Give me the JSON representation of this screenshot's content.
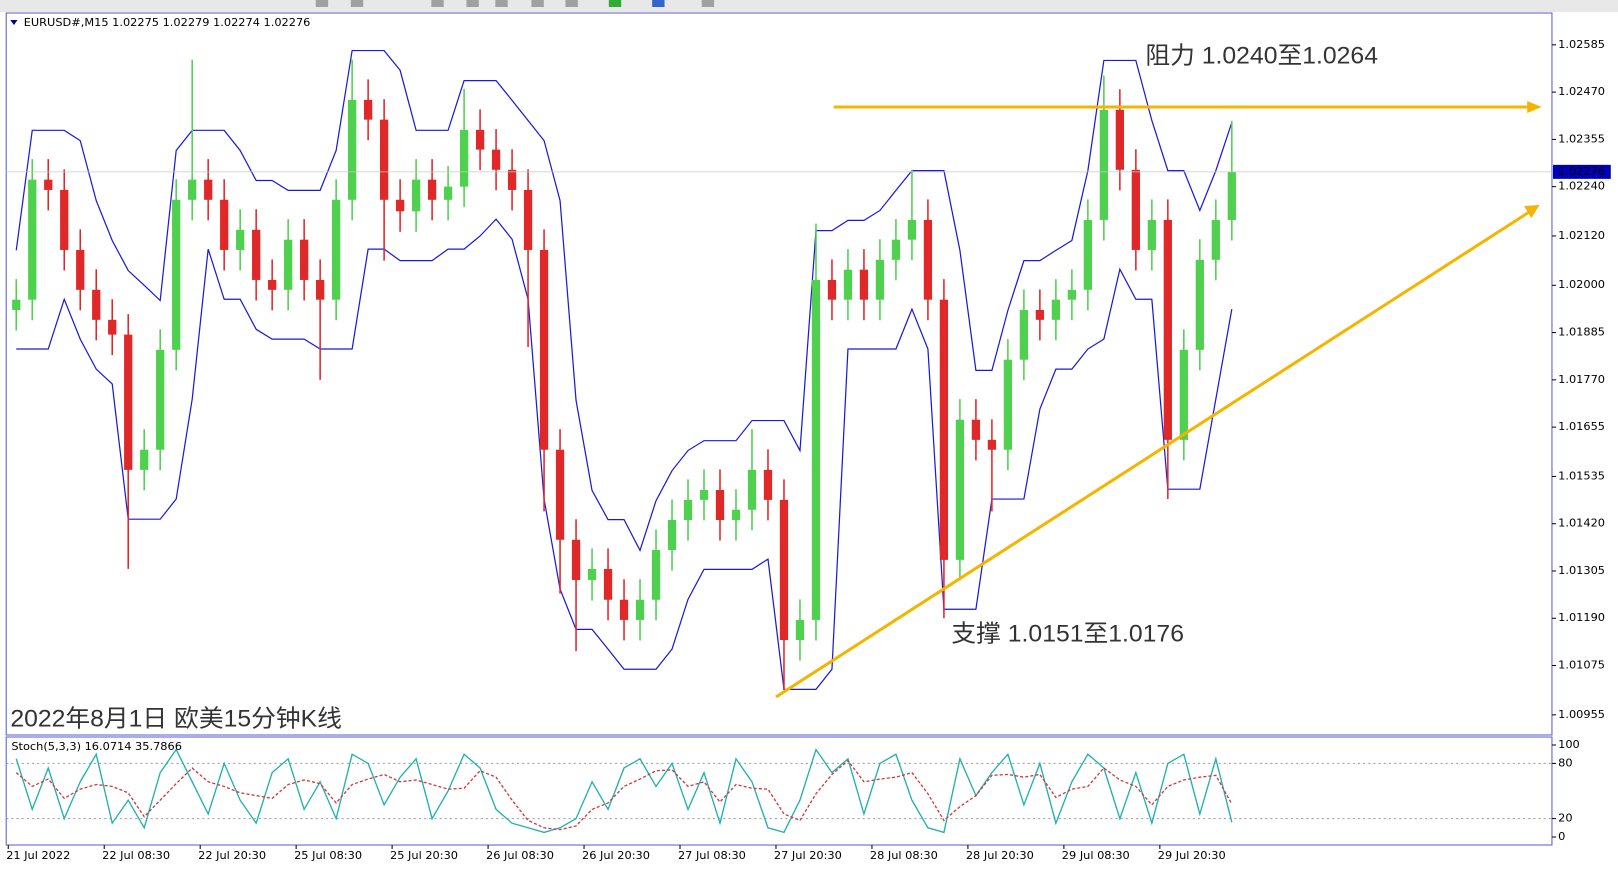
{
  "chart_data": [
    {
      "type": "candlestick",
      "title": "EURUSD#,M15  1.02275 1.02279 1.02274 1.02276",
      "annotations": [
        "阻力 1.0240至1.0264",
        "支撑 1.0151至1.0176",
        "2022年8月1日 欧美15分钟K线"
      ],
      "categories": [
        "21 Jul 2022",
        null,
        null,
        null,
        null,
        null,
        "22 Jul 08:30",
        null,
        null,
        null,
        null,
        null,
        "22 Jul 20:30",
        null,
        null,
        null,
        null,
        null,
        "25 Jul 08:30",
        null,
        null,
        null,
        null,
        null,
        "25 Jul 20:30",
        null,
        null,
        null,
        null,
        null,
        "26 Jul 08:30",
        null,
        null,
        null,
        null,
        null,
        "26 Jul 20:30",
        null,
        null,
        null,
        null,
        null,
        "27 Jul 08:30",
        null,
        null,
        null,
        null,
        null,
        "27 Jul 20:30",
        null,
        null,
        null,
        null,
        null,
        "28 Jul 08:30",
        null,
        null,
        null,
        null,
        null,
        "28 Jul 20:30",
        null,
        null,
        null,
        null,
        null,
        "29 Jul 08:30",
        null,
        null,
        null,
        null,
        null,
        "29 Jul 20:30",
        null,
        null,
        null,
        null
      ],
      "open": [
        1.0194,
        1.01965,
        1.02257,
        1.02232,
        1.02086,
        1.01989,
        1.01916,
        1.0188,
        1.01551,
        1.016,
        1.01843,
        1.02208,
        1.02257,
        1.02208,
        1.02086,
        1.02135,
        1.02013,
        1.01989,
        1.02111,
        1.02013,
        1.01965,
        1.02208,
        1.02451,
        1.02403,
        1.02208,
        1.0218,
        1.02257,
        1.02208,
        1.0224,
        1.02378,
        1.0233,
        1.02281,
        1.02232,
        1.02086,
        1.016,
        1.01381,
        1.01283,
        1.0131,
        1.01235,
        1.01186,
        1.01235,
        1.01356,
        1.01429,
        1.01478,
        1.01502,
        1.01429,
        1.01454,
        1.01551,
        1.01478,
        1.01137,
        1.01186,
        1.02013,
        1.01965,
        1.02038,
        1.01965,
        1.02062,
        1.02111,
        1.02159,
        1.01965,
        1.01332,
        1.01673,
        1.01624,
        1.016,
        1.01819,
        1.0194,
        1.01916,
        1.01965,
        1.01989,
        1.02159,
        1.02427,
        1.02281,
        1.02086,
        1.02159,
        1.01624,
        1.01843,
        1.02062,
        1.02159
      ],
      "high": [
        1.02015,
        1.02307,
        1.02307,
        1.02282,
        1.02136,
        1.02039,
        1.01966,
        1.0193,
        1.0165,
        1.01893,
        1.02258,
        1.02549,
        1.02307,
        1.02258,
        1.02185,
        1.02185,
        1.02063,
        1.02161,
        1.02161,
        1.02063,
        1.02258,
        1.02549,
        1.02501,
        1.02453,
        1.02258,
        1.02307,
        1.02307,
        1.0229,
        1.02478,
        1.02428,
        1.0238,
        1.02331,
        1.02282,
        1.02136,
        1.0165,
        1.01431,
        1.0136,
        1.0136,
        1.01285,
        1.01285,
        1.01406,
        1.01479,
        1.01528,
        1.01552,
        1.01552,
        1.01504,
        1.0165,
        1.01601,
        1.01528,
        1.01236,
        1.0215,
        1.02063,
        1.02088,
        1.02088,
        1.02112,
        1.02161,
        1.02281,
        1.02209,
        1.02015,
        1.01723,
        1.01723,
        1.01674,
        1.01869,
        1.0199,
        1.0199,
        1.02015,
        1.02039,
        1.02209,
        1.0251,
        1.02477,
        1.02331,
        1.02209,
        1.02209,
        1.01893,
        1.02112,
        1.02209,
        1.024
      ],
      "low": [
        1.0189,
        1.01915,
        1.02182,
        1.02036,
        1.01939,
        1.01866,
        1.0183,
        1.0131,
        1.01501,
        1.0155,
        1.01793,
        1.02158,
        1.02158,
        1.02036,
        1.02036,
        1.01963,
        1.01939,
        1.01939,
        1.01963,
        1.0177,
        1.01915,
        1.02158,
        1.02353,
        1.0206,
        1.0213,
        1.0213,
        1.02158,
        1.02158,
        1.0219,
        1.0228,
        1.02231,
        1.02182,
        1.0185,
        1.0145,
        1.0125,
        1.0111,
        1.01233,
        1.01185,
        1.01136,
        1.01136,
        1.01185,
        1.01306,
        1.01379,
        1.01428,
        1.01379,
        1.01379,
        1.01404,
        1.01428,
        1.01016,
        1.01087,
        1.01136,
        1.01915,
        1.01915,
        1.01915,
        1.01915,
        1.02012,
        1.02061,
        1.01915,
        1.0119,
        1.01282,
        1.01574,
        1.0145,
        1.0155,
        1.01769,
        1.01866,
        1.01866,
        1.01915,
        1.01939,
        1.02109,
        1.02231,
        1.02036,
        1.02036,
        1.0148,
        1.01574,
        1.01793,
        1.02012,
        1.02109
      ],
      "close": [
        1.01965,
        1.02257,
        1.02232,
        1.02086,
        1.01989,
        1.01916,
        1.0188,
        1.01551,
        1.016,
        1.01843,
        1.02208,
        1.02257,
        1.02208,
        1.02086,
        1.02135,
        1.02013,
        1.01989,
        1.02111,
        1.02013,
        1.01965,
        1.02208,
        1.02451,
        1.02403,
        1.02208,
        1.0218,
        1.02257,
        1.02208,
        1.0224,
        1.02378,
        1.0233,
        1.02281,
        1.02232,
        1.02086,
        1.016,
        1.01381,
        1.01283,
        1.0131,
        1.01235,
        1.01186,
        1.01235,
        1.01356,
        1.01429,
        1.01478,
        1.01502,
        1.01429,
        1.01454,
        1.01551,
        1.01478,
        1.01137,
        1.01186,
        1.02013,
        1.01965,
        1.02038,
        1.01965,
        1.02062,
        1.02111,
        1.02159,
        1.01965,
        1.01332,
        1.01673,
        1.01624,
        1.016,
        1.01819,
        1.0194,
        1.01916,
        1.01965,
        1.01989,
        1.02159,
        1.02427,
        1.02281,
        1.02086,
        1.02159,
        1.01624,
        1.01843,
        1.02062,
        1.02159,
        1.02276
      ],
      "upper_band": [
        1.02085,
        1.02377,
        1.02377,
        1.02377,
        1.02352,
        1.02206,
        1.02109,
        1.02036,
        1.02,
        1.01963,
        1.02328,
        1.02377,
        1.02377,
        1.02377,
        1.02328,
        1.02255,
        1.02255,
        1.02231,
        1.02231,
        1.02231,
        1.02328,
        1.02571,
        1.02571,
        1.02571,
        1.02523,
        1.02377,
        1.02377,
        1.02377,
        1.02498,
        1.02498,
        1.02498,
        1.0245,
        1.02401,
        1.02352,
        1.02206,
        1.0172,
        1.01501,
        1.0143,
        1.0143,
        1.01355,
        1.01476,
        1.01549,
        1.01598,
        1.01622,
        1.01622,
        1.01622,
        1.01671,
        1.01671,
        1.01671,
        1.01598,
        1.02133,
        1.02133,
        1.02158,
        1.02158,
        1.02182,
        1.02231,
        1.02279,
        1.02279,
        1.02279,
        1.02085,
        1.01793,
        1.01793,
        1.01939,
        1.0206,
        1.0206,
        1.02085,
        1.02109,
        1.02279,
        1.02547,
        1.02547,
        1.02547,
        1.02401,
        1.02279,
        1.02279,
        1.02182,
        1.02279,
        1.02396
      ],
      "lower_band": [
        1.01845,
        1.01845,
        1.01845,
        1.01966,
        1.01869,
        1.01796,
        1.0176,
        1.01431,
        1.01431,
        1.01431,
        1.0148,
        1.01723,
        1.02088,
        1.01966,
        1.01966,
        1.01893,
        1.01869,
        1.01869,
        1.01869,
        1.01845,
        1.01845,
        1.01845,
        1.02088,
        1.02088,
        1.0206,
        1.0206,
        1.0206,
        1.02088,
        1.02088,
        1.0212,
        1.02161,
        1.02112,
        1.01966,
        1.0148,
        1.01261,
        1.01163,
        1.01163,
        1.01115,
        1.01066,
        1.01066,
        1.01066,
        1.01115,
        1.01236,
        1.01309,
        1.01309,
        1.01309,
        1.01309,
        1.01334,
        1.01017,
        1.01017,
        1.01017,
        1.01066,
        1.01845,
        1.01845,
        1.01845,
        1.01845,
        1.01942,
        1.01845,
        1.01212,
        1.01212,
        1.01212,
        1.0148,
        1.0148,
        1.0148,
        1.01699,
        1.01796,
        1.01796,
        1.01845,
        1.01869,
        1.02039,
        1.01966,
        1.01966,
        1.01504,
        1.01504,
        1.01504,
        1.01723,
        1.01942
      ],
      "up_color": "#4fd04f",
      "down_color": "#e02828",
      "band_color": "#1a1ad8",
      "last_price": 1.02276,
      "ylim": [
        1.00906,
        1.0266
      ],
      "yticks": [
        1.02585,
        {
          "value": 1.0247,
          "label": "1.02470"
        },
        1.02355,
        {
          "value": 1.0224,
          "label": "1.02240"
        },
        {
          "value": 1.0212,
          "label": "1.02120"
        },
        {
          "value": 1.02,
          "label": "1.02000"
        },
        1.01885,
        {
          "value": 1.0177,
          "label": "1.01770"
        },
        1.01655,
        1.01535,
        {
          "value": 1.0142,
          "label": "1.01420"
        },
        1.01305,
        {
          "value": 1.0119,
          "label": "1.01190"
        },
        1.01075,
        1.00955
      ]
    },
    {
      "type": "line",
      "title": "Stoch(5,3,3) 16.0714 35.7866",
      "series": [
        {
          "color": "#1fb0b0",
          "values": [
            85,
            30,
            75,
            20,
            60,
            90,
            15,
            40,
            10,
            70,
            95,
            60,
            25,
            80,
            40,
            15,
            70,
            85,
            30,
            60,
            20,
            90,
            80,
            35,
            65,
            85,
            20,
            50,
            90,
            75,
            30,
            15,
            10,
            5,
            10,
            20,
            60,
            30,
            75,
            85,
            55,
            80,
            30,
            70,
            15,
            85,
            60,
            10,
            5,
            40,
            95,
            70,
            85,
            25,
            80,
            90,
            40,
            10,
            5,
            85,
            45,
            70,
            90,
            35,
            80,
            15,
            60,
            90,
            75,
            20,
            70,
            15,
            80,
            90,
            25,
            85,
            16.0714
          ]
        },
        {
          "color": "#d03a3a",
          "dashed": true,
          "values": [
            70,
            55,
            63,
            42,
            52,
            57,
            55,
            48,
            22,
            40,
            58,
            75,
            60,
            55,
            48,
            45,
            42,
            57,
            62,
            58,
            37,
            57,
            63,
            68,
            60,
            62,
            57,
            52,
            53,
            72,
            65,
            40,
            18,
            10,
            8,
            12,
            30,
            37,
            55,
            63,
            72,
            73,
            55,
            60,
            38,
            57,
            53,
            52,
            25,
            18,
            47,
            68,
            83,
            60,
            63,
            65,
            70,
            47,
            18,
            33,
            45,
            67,
            68,
            65,
            68,
            43,
            52,
            55,
            75,
            62,
            55,
            35,
            55,
            62,
            65,
            67,
            35.7866
          ]
        }
      ],
      "levels": [
        80,
        20
      ],
      "ylim": [
        -8.7,
        108.7
      ],
      "yticks": [
        100,
        80,
        20,
        0
      ]
    }
  ]
}
